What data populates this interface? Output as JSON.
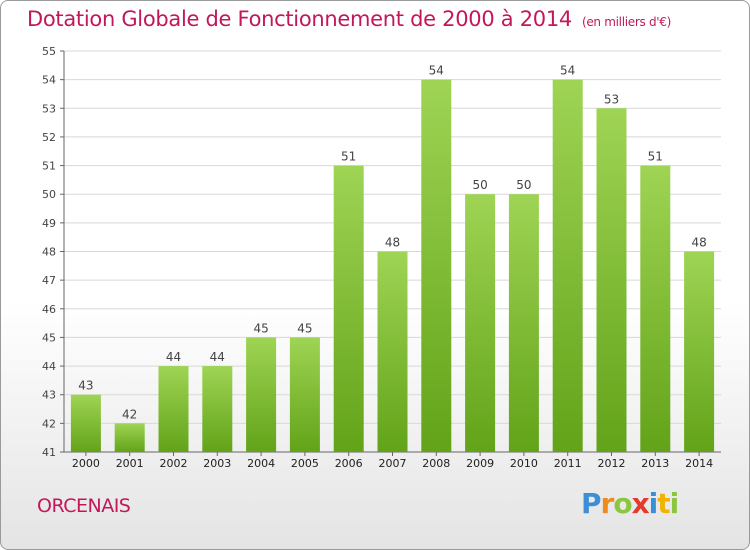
{
  "header": {
    "title": "Dotation Globale de Fonctionnement de 2000 à 2014",
    "subtitle": "(en milliers d'€)"
  },
  "footer": {
    "commune": "ORCENAIS",
    "logo_letters": [
      "P",
      "r",
      "o",
      "x",
      "i",
      "t",
      "i"
    ]
  },
  "colors": {
    "title": "#c2185b",
    "bar_top": "#9fd454",
    "bar_bottom": "#62a319",
    "grid": "#d8d8d8"
  },
  "chart_data": {
    "type": "bar",
    "title": "Dotation Globale de Fonctionnement de 2000 à 2014",
    "subtitle": "(en milliers d'€)",
    "categories": [
      "2000",
      "2001",
      "2002",
      "2003",
      "2004",
      "2005",
      "2006",
      "2007",
      "2008",
      "2009",
      "2010",
      "2011",
      "2012",
      "2013",
      "2014"
    ],
    "values": [
      43,
      42,
      44,
      44,
      45,
      45,
      51,
      48,
      54,
      50,
      50,
      54,
      53,
      51,
      48
    ],
    "ylim": [
      41,
      55
    ],
    "yticks": [
      41,
      42,
      43,
      44,
      45,
      46,
      47,
      48,
      49,
      50,
      51,
      52,
      53,
      54,
      55
    ],
    "grid": true,
    "xlabel": "",
    "ylabel": ""
  }
}
